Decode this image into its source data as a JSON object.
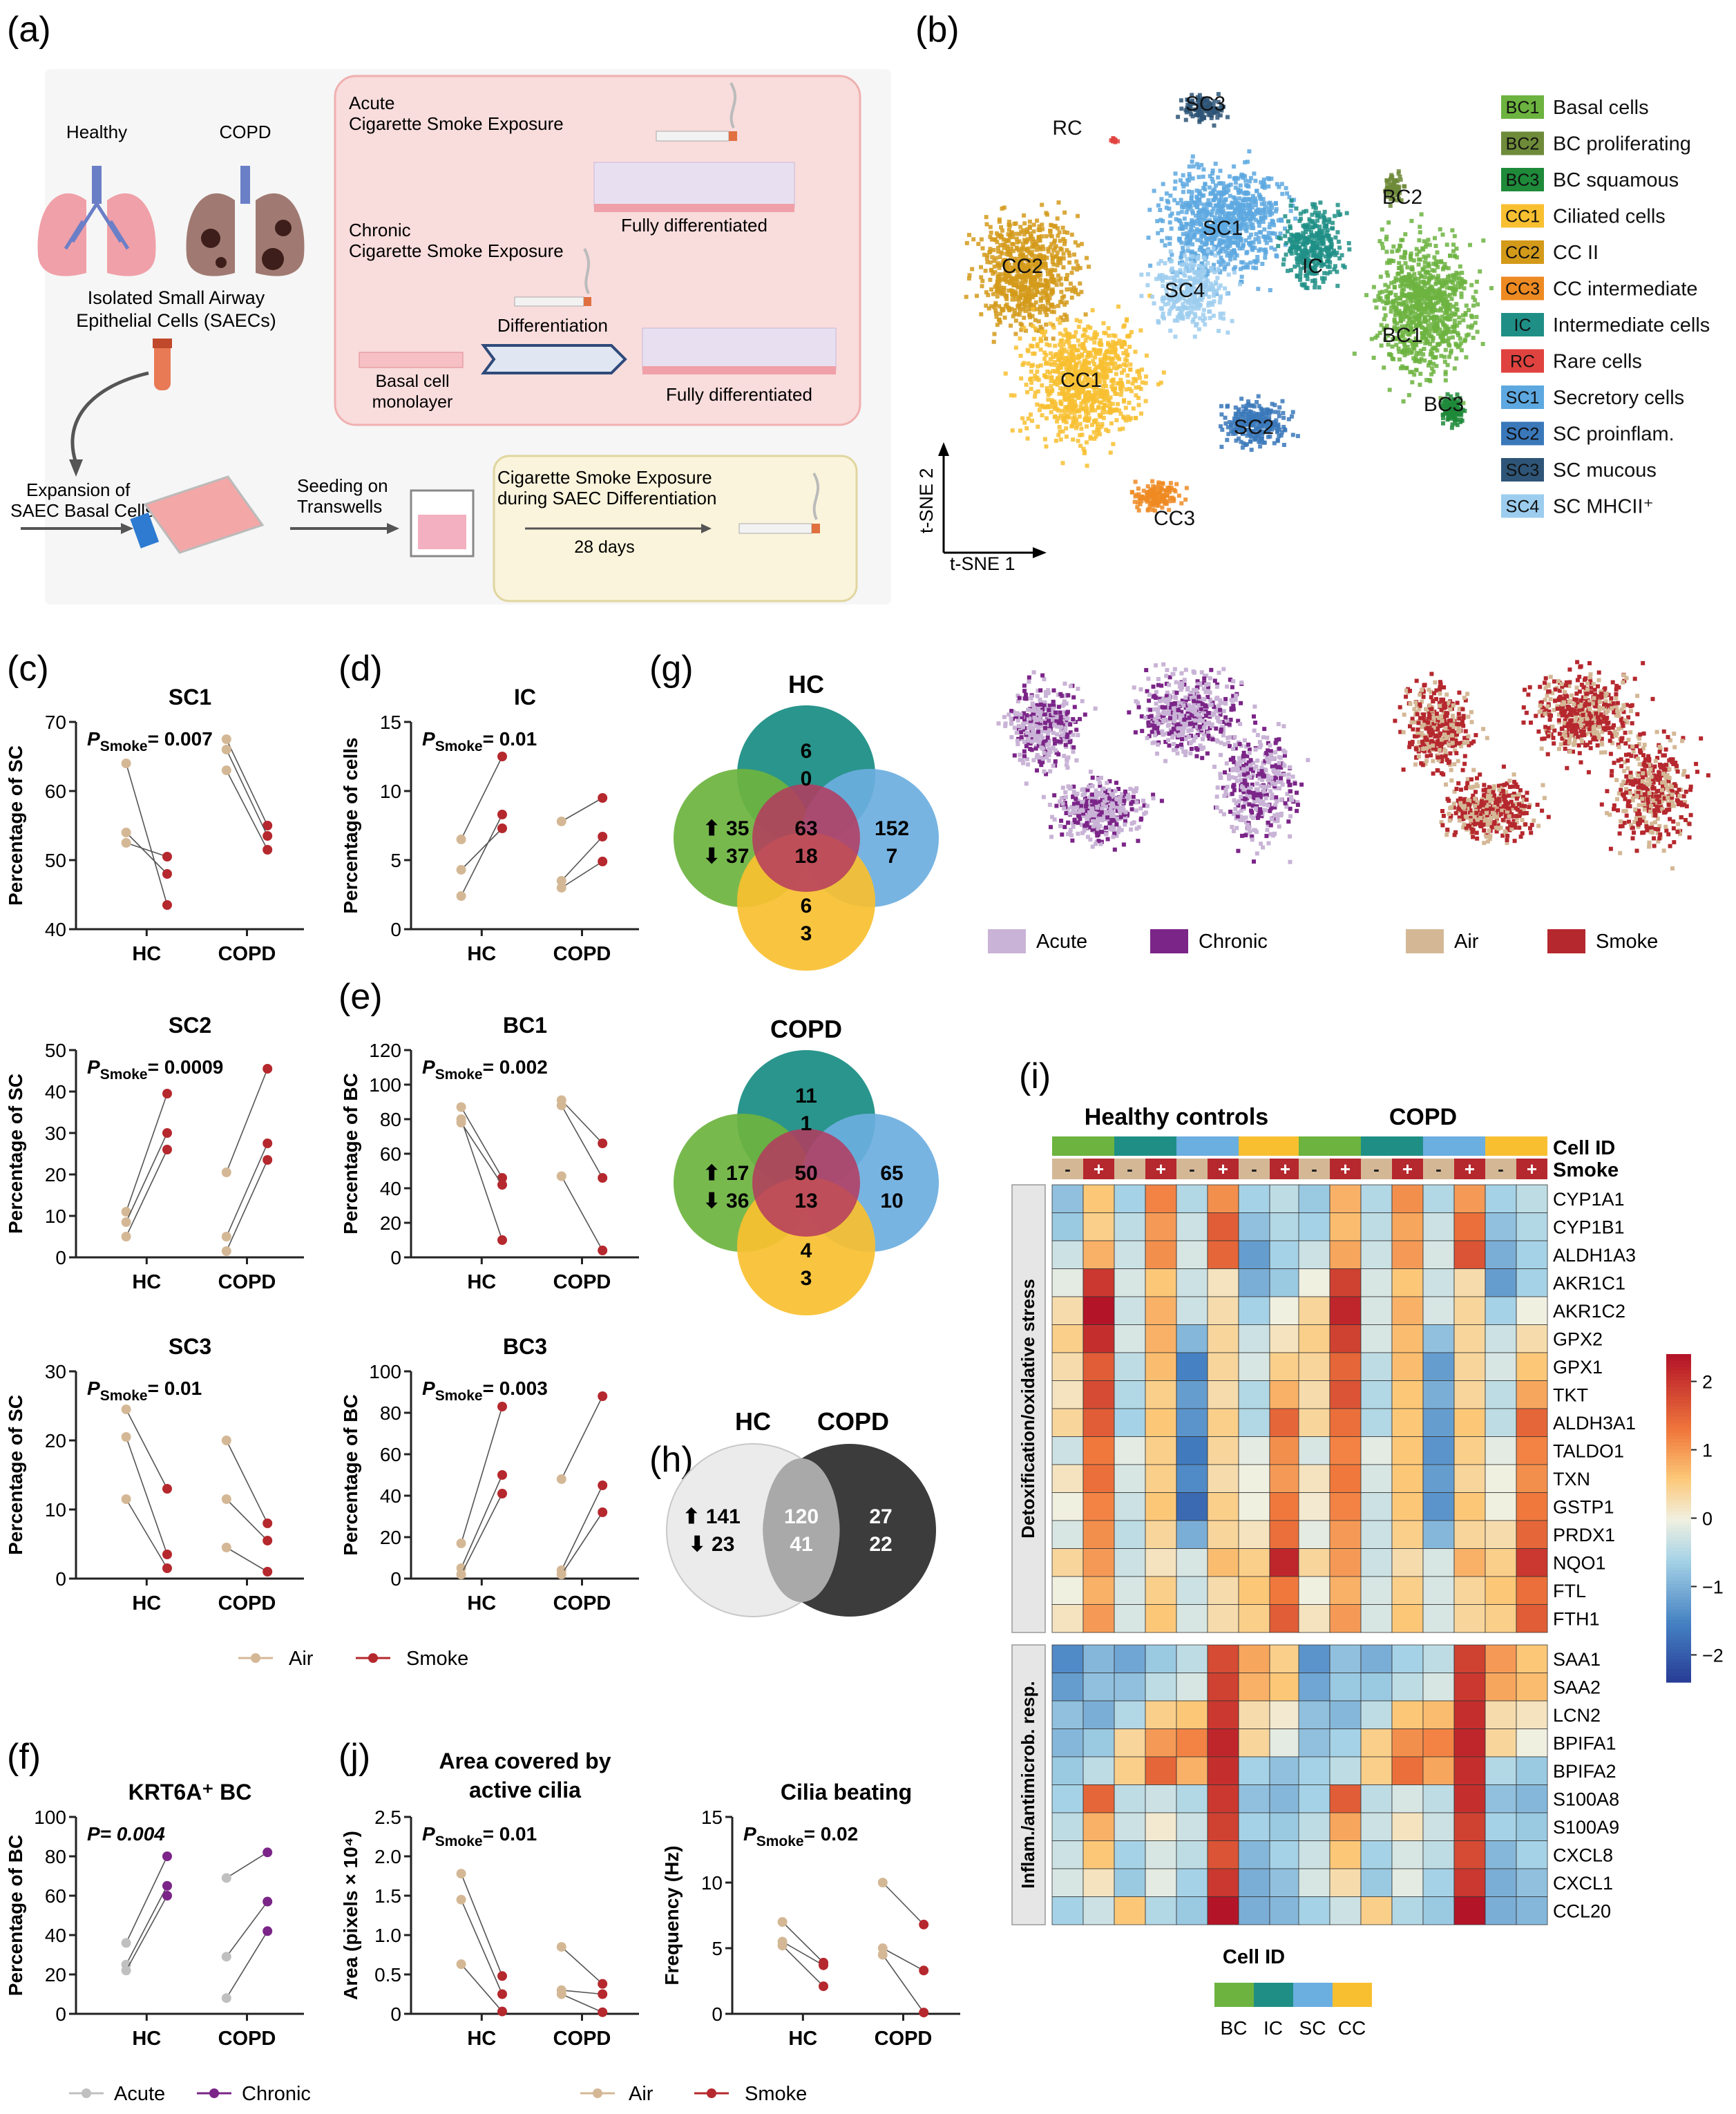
{
  "colors": {
    "air": "#D4B896",
    "smoke": "#B5282E",
    "acute": "#C9B3D6",
    "chronic": "#7B2588",
    "bc": "#6CB33F",
    "ic": "#1F8F86",
    "sc": "#6BAEE0",
    "cc": "#F8C030",
    "axis": "#222222"
  },
  "panel_labels": {
    "a": "(a)",
    "b": "(b)",
    "c": "(c)",
    "d": "(d)",
    "e": "(e)",
    "f": "(f)",
    "g": "(g)",
    "h": "(h)",
    "i": "(i)",
    "j": "(j)"
  },
  "schematic": {
    "healthy": "Healthy",
    "copd": "COPD",
    "isolated": [
      "Isolated Small Airway",
      "Epithelial Cells (SAECs)"
    ],
    "acute": [
      "Acute",
      "Cigarette Smoke Exposure"
    ],
    "chronic": [
      "Chronic",
      "Cigarette Smoke Exposure"
    ],
    "fully_diff_1": "Fully differentiated",
    "differentiation": "Differentiation",
    "basal_monolayer": [
      "Basal cell",
      "monolayer"
    ],
    "fully_diff_2": "Fully differentiated",
    "expansion": [
      "Expansion of",
      "SAEC Basal Cells"
    ],
    "seeding": [
      "Seeding on",
      "Transwells"
    ],
    "cs_exposure": [
      "Cigarette Smoke Exposure",
      "during SAEC Differentiation"
    ],
    "days": "28 days"
  },
  "tsne": {
    "xlabel": "t-SNE 1",
    "ylabel": "t-SNE 2",
    "cluster_labels": [
      "SC3",
      "RC",
      "SC1",
      "BC2",
      "CC2",
      "SC4",
      "IC",
      "BC1",
      "CC1",
      "SC2",
      "BC3",
      "CC3"
    ],
    "legend": [
      {
        "code": "BC1",
        "name": "Basal cells",
        "color": "#6CB33F"
      },
      {
        "code": "BC2",
        "name": "BC proliferating",
        "color": "#6E8B3A"
      },
      {
        "code": "BC3",
        "name": "BC squamous",
        "color": "#1E8A3A"
      },
      {
        "code": "CC1",
        "name": "Ciliated cells",
        "color": "#F8C030"
      },
      {
        "code": "CC2",
        "name": "CC II",
        "color": "#D39A1A"
      },
      {
        "code": "CC3",
        "name": "CC intermediate",
        "color": "#EE8A22"
      },
      {
        "code": "IC",
        "name": "Intermediate cells",
        "color": "#1F8F86"
      },
      {
        "code": "RC",
        "name": "Rare cells",
        "color": "#E0433F"
      },
      {
        "code": "SC1",
        "name": "Secretory cells",
        "color": "#5DA8E0"
      },
      {
        "code": "SC2",
        "name": "SC proinflam.",
        "color": "#3A78BA"
      },
      {
        "code": "SC3",
        "name": "SC mucous",
        "color": "#2E5577"
      },
      {
        "code": "SC4",
        "name": "SC MHCII⁺",
        "color": "#9CCDEE"
      }
    ],
    "legend_acute": "Acute",
    "legend_chronic": "Chronic",
    "legend_air": "Air",
    "legend_smoke": "Smoke"
  },
  "line_legend_air_smoke": {
    "air": "Air",
    "smoke": "Smoke"
  },
  "line_legend_acute_chronic": {
    "acute": "Acute",
    "chronic": "Chronic"
  },
  "chart_data": [
    {
      "id": "c1",
      "type": "paired-dot",
      "title": "SC1",
      "ylabel": "Percentage of SC",
      "stat": "= 0.007",
      "ylim": [
        40,
        70
      ],
      "yticks": [
        40,
        50,
        60,
        70
      ],
      "categories": [
        "HC",
        "COPD"
      ],
      "pairs": {
        "HC": [
          [
            64,
            43.5
          ],
          [
            54,
            48
          ],
          [
            52.5,
            50.5
          ]
        ],
        "COPD": [
          [
            67.5,
            55
          ],
          [
            66,
            53.5
          ],
          [
            63,
            51.5
          ]
        ]
      }
    },
    {
      "id": "c2",
      "type": "paired-dot",
      "title": "SC2",
      "ylabel": "Percentage of SC",
      "stat": "= 0.0009",
      "ylim": [
        0,
        50
      ],
      "yticks": [
        0,
        10,
        20,
        30,
        40,
        50
      ],
      "categories": [
        "HC",
        "COPD"
      ],
      "pairs": {
        "HC": [
          [
            11,
            39.5
          ],
          [
            8.5,
            30
          ],
          [
            5,
            26
          ]
        ],
        "COPD": [
          [
            20.5,
            45.5
          ],
          [
            5,
            27.5
          ],
          [
            1.5,
            23.5
          ]
        ]
      }
    },
    {
      "id": "c3",
      "type": "paired-dot",
      "title": "SC3",
      "ylabel": "Percentage of SC",
      "stat": "= 0.01",
      "ylim": [
        0,
        30
      ],
      "yticks": [
        0,
        10,
        20,
        30
      ],
      "categories": [
        "HC",
        "COPD"
      ],
      "pairs": {
        "HC": [
          [
            24.5,
            13
          ],
          [
            20.5,
            3.5
          ],
          [
            11.5,
            1.5
          ]
        ],
        "COPD": [
          [
            20,
            8
          ],
          [
            11.5,
            5.5
          ],
          [
            4.5,
            1
          ]
        ]
      }
    },
    {
      "id": "d",
      "type": "paired-dot",
      "title": "IC",
      "ylabel": "Percentage of cells",
      "stat": "= 0.01",
      "ylim": [
        0,
        15
      ],
      "yticks": [
        0,
        5,
        10,
        15
      ],
      "categories": [
        "HC",
        "COPD"
      ],
      "pairs": {
        "HC": [
          [
            6.5,
            12.5
          ],
          [
            4.3,
            7.3
          ],
          [
            2.4,
            8.3
          ]
        ],
        "COPD": [
          [
            7.8,
            9.5
          ],
          [
            3.5,
            6.7
          ],
          [
            3,
            4.9
          ]
        ]
      }
    },
    {
      "id": "e1",
      "type": "paired-dot",
      "title": "BC1",
      "ylabel": "Percentage of BC",
      "stat": "= 0.002",
      "ylim": [
        0,
        120
      ],
      "yticks": [
        0,
        20,
        40,
        60,
        80,
        100,
        120
      ],
      "categories": [
        "HC",
        "COPD"
      ],
      "pairs": {
        "HC": [
          [
            87,
            46
          ],
          [
            80,
            10
          ],
          [
            78,
            42
          ]
        ],
        "COPD": [
          [
            91,
            66
          ],
          [
            88,
            46
          ],
          [
            47,
            4
          ]
        ]
      }
    },
    {
      "id": "e2",
      "type": "paired-dot",
      "title": "BC3",
      "ylabel": "Percentage of BC",
      "stat": "= 0.003",
      "ylim": [
        0,
        100
      ],
      "yticks": [
        0,
        20,
        40,
        60,
        80,
        100
      ],
      "categories": [
        "HC",
        "COPD"
      ],
      "pairs": {
        "HC": [
          [
            17,
            83
          ],
          [
            5,
            50
          ],
          [
            2,
            41
          ]
        ],
        "COPD": [
          [
            48,
            88
          ],
          [
            4,
            45
          ],
          [
            2,
            32
          ]
        ]
      }
    },
    {
      "id": "f",
      "type": "paired-dot",
      "title": "KRT6A⁺ BC",
      "ylabel": "Percentage of BC",
      "stat": "P= 0.004",
      "ylim": [
        0,
        100
      ],
      "yticks": [
        0,
        20,
        40,
        60,
        80,
        100
      ],
      "categories": [
        "HC",
        "COPD"
      ],
      "pairs": {
        "HC": [
          [
            36,
            80
          ],
          [
            25,
            65
          ],
          [
            22,
            60
          ]
        ],
        "COPD": [
          [
            69,
            82
          ],
          [
            29,
            57
          ],
          [
            8,
            42
          ]
        ]
      }
    },
    {
      "id": "j1",
      "type": "paired-dot",
      "title": [
        "Area covered by",
        "active cilia"
      ],
      "ylabel": "Area (pixels × 10⁴)",
      "stat": "= 0.01",
      "ylim": [
        0,
        2.5
      ],
      "yticks": [
        "0",
        "0.5",
        "1.0",
        "1.5",
        "2.0",
        "2.5"
      ],
      "categories": [
        "HC",
        "COPD"
      ],
      "pairs": {
        "HC": [
          [
            1.78,
            0.48
          ],
          [
            1.45,
            0.25
          ],
          [
            0.63,
            0.03
          ]
        ],
        "COPD": [
          [
            0.85,
            0.38
          ],
          [
            0.3,
            0.25
          ],
          [
            0.25,
            0.02
          ]
        ]
      }
    },
    {
      "id": "j2",
      "type": "paired-dot",
      "title": "Cilia beating",
      "ylabel": "Frequency (Hz)",
      "stat": "= 0.02",
      "ylim": [
        0,
        15
      ],
      "yticks": [
        0,
        5,
        10,
        15
      ],
      "categories": [
        "HC",
        "COPD"
      ],
      "pairs": {
        "HC": [
          [
            7,
            3.9
          ],
          [
            5.5,
            3.7
          ],
          [
            5.2,
            2.1
          ]
        ],
        "COPD": [
          [
            10,
            6.8
          ],
          [
            5,
            3.3
          ],
          [
            4.5,
            0.1
          ]
        ]
      }
    },
    {
      "id": "g_hc",
      "type": "venn",
      "title": "HC",
      "sets": [
        {
          "label": "top",
          "up": 6,
          "down": 0
        },
        {
          "label": "left",
          "up": 35,
          "down": 37
        },
        {
          "label": "center",
          "up": 63,
          "down": 18
        },
        {
          "label": "right",
          "up": 152,
          "down": 7
        },
        {
          "label": "bottom",
          "up": 6,
          "down": 3
        }
      ]
    },
    {
      "id": "g_copd",
      "type": "venn",
      "title": "COPD",
      "sets": [
        {
          "label": "top",
          "up": 11,
          "down": 1
        },
        {
          "label": "left",
          "up": 17,
          "down": 36
        },
        {
          "label": "center",
          "up": 50,
          "down": 13
        },
        {
          "label": "right",
          "up": 65,
          "down": 10
        },
        {
          "label": "bottom",
          "up": 4,
          "down": 3
        }
      ]
    },
    {
      "id": "h",
      "type": "venn",
      "titles": [
        "HC",
        "COPD"
      ],
      "hc_only": [
        141,
        23
      ],
      "shared": [
        120,
        41
      ],
      "copd_only": [
        27,
        22
      ]
    },
    {
      "id": "i",
      "type": "heatmap",
      "group_titles": [
        "Healthy controls",
        "COPD"
      ],
      "row_label_cellid": "Cell ID",
      "row_label_smoke": "Smoke",
      "smoke_signs": [
        "-",
        "+",
        "-",
        "+",
        "-",
        "+",
        "-",
        "+"
      ],
      "section_labels": [
        "Detoxification/oxidative stress",
        "Inflam./antimicrob. resp."
      ],
      "genes_1": [
        "CYP1A1",
        "CYP1B1",
        "ALDH1A3",
        "AKR1C1",
        "AKR1C2",
        "GPX2",
        "GPX1",
        "TKT",
        "ALDH3A1",
        "TALDO1",
        "TXN",
        "GSTP1",
        "PRDX1",
        "NQO1",
        "FTL",
        "FTH1"
      ],
      "genes_2": [
        "SAA1",
        "SAA2",
        "LCN2",
        "BPIFA1",
        "BPIFA2",
        "S100A8",
        "S100A9",
        "CXCL8",
        "CXCL1",
        "CCL20"
      ],
      "colorbar_ticks": [
        "2",
        "1",
        "0",
        "−1",
        "−2"
      ],
      "cellid_legend_title": "Cell ID",
      "cellid_legend": [
        "BC",
        "IC",
        "SC",
        "CC"
      ],
      "hc_values": [
        [
          -0.8,
          0.6,
          -0.6,
          1.2,
          -0.5,
          1.1,
          -0.6,
          -0.4
        ],
        [
          -0.7,
          0.5,
          -0.4,
          1.0,
          -0.3,
          1.6,
          -0.8,
          -0.5
        ],
        [
          -0.3,
          0.8,
          -0.3,
          1.1,
          -0.2,
          1.5,
          -1.2,
          -0.6
        ],
        [
          -0.1,
          2.0,
          -0.2,
          0.6,
          -0.3,
          0.2,
          -1.0,
          -0.7
        ],
        [
          0.3,
          2.4,
          -0.3,
          0.8,
          -0.3,
          0.3,
          -0.6,
          0.0
        ],
        [
          0.5,
          2.1,
          -0.2,
          0.8,
          -0.9,
          0.4,
          -0.3,
          0.2
        ],
        [
          0.3,
          1.6,
          -0.4,
          0.7,
          -1.5,
          0.4,
          -0.2,
          0.5
        ],
        [
          0.2,
          1.8,
          -0.5,
          0.5,
          -1.2,
          0.3,
          -0.5,
          0.8
        ],
        [
          0.4,
          1.6,
          -0.6,
          0.6,
          -1.3,
          0.5,
          -0.5,
          1.5
        ],
        [
          -0.3,
          1.3,
          -0.1,
          0.5,
          -1.6,
          0.4,
          -0.1,
          1.1
        ],
        [
          0.2,
          1.4,
          -0.2,
          0.5,
          -1.4,
          0.3,
          0.0,
          1.0
        ],
        [
          0.0,
          1.2,
          -0.3,
          0.6,
          -1.8,
          0.5,
          0.0,
          1.3
        ],
        [
          -0.2,
          1.1,
          -0.4,
          0.4,
          -1.0,
          0.4,
          0.2,
          1.4
        ],
        [
          0.4,
          1.0,
          -0.3,
          0.2,
          -0.2,
          0.7,
          0.5,
          2.2
        ],
        [
          0.0,
          0.8,
          -0.2,
          0.5,
          -0.3,
          0.3,
          0.6,
          1.3
        ],
        [
          0.2,
          1.0,
          -0.2,
          0.6,
          -0.2,
          0.3,
          0.5,
          1.6
        ]
      ],
      "hc_values_2": [
        [
          -1.4,
          -0.9,
          -1.1,
          -0.7,
          -0.4,
          1.8,
          0.9,
          0.5
        ],
        [
          -1.2,
          -0.8,
          -0.8,
          -0.4,
          -0.2,
          1.9,
          0.8,
          0.6
        ],
        [
          -0.8,
          -1.0,
          -0.5,
          0.5,
          0.6,
          2.0,
          0.3,
          0.1
        ],
        [
          -0.9,
          -0.7,
          0.4,
          1.0,
          1.2,
          2.2,
          0.4,
          -0.1
        ],
        [
          -0.7,
          -0.4,
          0.5,
          1.5,
          0.8,
          2.1,
          -0.6,
          -0.8
        ],
        [
          -0.6,
          1.5,
          -0.4,
          -0.3,
          -0.5,
          2.0,
          -0.8,
          -0.9
        ],
        [
          -0.4,
          0.8,
          -0.3,
          0.1,
          -0.3,
          1.9,
          -0.6,
          -0.7
        ],
        [
          -0.3,
          0.6,
          -0.6,
          -0.2,
          -0.4,
          1.7,
          -0.9,
          -0.6
        ],
        [
          -0.2,
          0.2,
          -0.7,
          -0.1,
          -0.6,
          2.0,
          -1.0,
          -0.8
        ],
        [
          -0.6,
          -0.3,
          0.6,
          -0.5,
          -0.7,
          2.4,
          -1.0,
          -0.9
        ]
      ],
      "copd_values": [
        [
          -0.7,
          0.8,
          -0.5,
          1.1,
          -0.5,
          1.0,
          -0.6,
          -0.4
        ],
        [
          -0.6,
          0.7,
          -0.4,
          0.9,
          -0.3,
          1.4,
          -0.8,
          -0.5
        ],
        [
          -0.3,
          0.9,
          -0.3,
          1.0,
          -0.2,
          1.7,
          -1.0,
          -0.6
        ],
        [
          0.0,
          1.9,
          -0.2,
          0.6,
          -0.3,
          0.3,
          -1.2,
          -0.6
        ],
        [
          0.4,
          2.2,
          -0.2,
          0.8,
          -0.2,
          0.4,
          -0.6,
          0.0
        ],
        [
          0.5,
          1.9,
          -0.2,
          0.7,
          -0.8,
          0.4,
          -0.3,
          0.3
        ],
        [
          0.4,
          1.5,
          -0.4,
          0.7,
          -1.2,
          0.4,
          -0.2,
          0.6
        ],
        [
          0.3,
          1.7,
          -0.5,
          0.6,
          -1.0,
          0.4,
          -0.4,
          0.9
        ],
        [
          0.4,
          1.4,
          -0.5,
          0.6,
          -1.2,
          0.6,
          -0.4,
          1.5
        ],
        [
          -0.2,
          1.2,
          -0.1,
          0.6,
          -1.3,
          0.5,
          -0.1,
          1.2
        ],
        [
          0.2,
          1.3,
          -0.2,
          0.6,
          -1.2,
          0.4,
          0.0,
          1.1
        ],
        [
          0.1,
          1.2,
          -0.3,
          0.6,
          -1.3,
          0.6,
          0.0,
          1.3
        ],
        [
          -0.1,
          1.0,
          -0.3,
          0.5,
          -0.9,
          0.4,
          0.3,
          1.5
        ],
        [
          0.4,
          1.0,
          -0.3,
          0.3,
          -0.2,
          0.8,
          0.5,
          2.0
        ],
        [
          0.0,
          0.8,
          -0.2,
          0.5,
          -0.2,
          0.4,
          0.6,
          1.4
        ],
        [
          0.2,
          1.0,
          -0.2,
          0.6,
          -0.2,
          0.4,
          0.5,
          1.6
        ]
      ],
      "copd_values_2": [
        [
          -1.3,
          -0.8,
          -1.0,
          -0.6,
          -0.4,
          1.9,
          1.0,
          0.6
        ],
        [
          -1.1,
          -0.7,
          -0.7,
          -0.4,
          -0.2,
          2.0,
          0.9,
          0.7
        ],
        [
          -0.8,
          -0.9,
          -0.4,
          0.6,
          0.7,
          2.1,
          0.3,
          0.2
        ],
        [
          -0.8,
          -0.6,
          0.5,
          1.1,
          1.2,
          2.2,
          0.4,
          0.0
        ],
        [
          -0.6,
          -0.4,
          0.5,
          1.4,
          0.9,
          2.1,
          -0.5,
          -0.7
        ],
        [
          -0.6,
          1.6,
          -0.4,
          -0.2,
          -0.4,
          2.1,
          -0.8,
          -0.9
        ],
        [
          -0.4,
          0.9,
          -0.3,
          0.2,
          -0.3,
          1.9,
          -0.6,
          -0.7
        ],
        [
          -0.3,
          0.6,
          -0.6,
          -0.2,
          -0.4,
          1.8,
          -0.9,
          -0.6
        ],
        [
          -0.2,
          0.3,
          -0.7,
          -0.1,
          -0.6,
          2.0,
          -1.0,
          -0.8
        ],
        [
          -0.6,
          -0.3,
          0.5,
          -0.5,
          -0.7,
          2.4,
          -1.0,
          -0.9
        ]
      ]
    }
  ]
}
